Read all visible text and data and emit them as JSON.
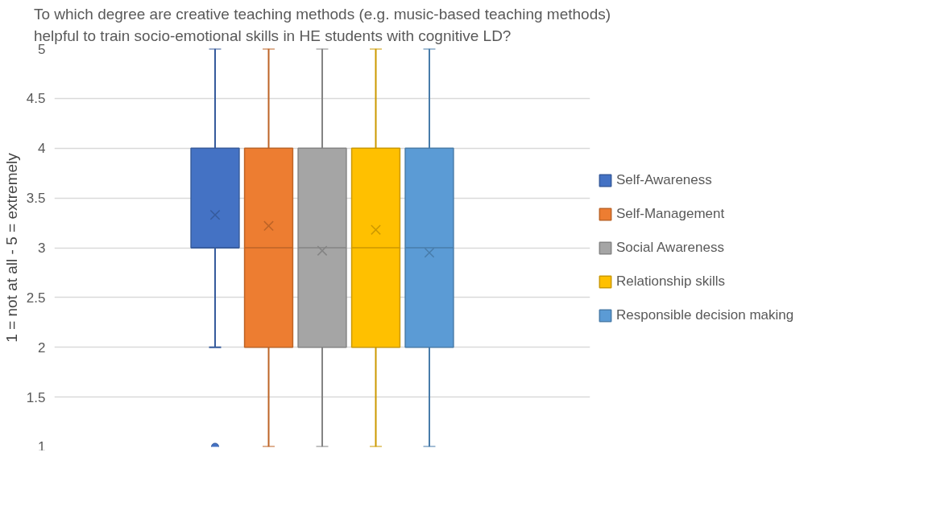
{
  "chart_data": {
    "type": "box",
    "title": "To which degree are creative teaching methods (e.g. music-based teaching methods)\nhelpful to train socio-emotional skills in HE students with cognitive LD?",
    "ylabel": "1 = not at all - 5 = extremely",
    "categories": [
      null
    ],
    "series": [
      {
        "name": "Self-Awareness",
        "color": "#4472c4",
        "boxes": [
          {
            "low": 2,
            "q1": 3,
            "median": 3,
            "q3": 4,
            "high": 5,
            "mean": 3.33,
            "outliers": [
              1
            ]
          }
        ]
      },
      {
        "name": "Self-Management",
        "color": "#ed7d31",
        "boxes": [
          {
            "low": 1,
            "q1": 2,
            "median": 3,
            "q3": 4,
            "high": 5,
            "mean": 3.22
          }
        ]
      },
      {
        "name": "Social Awareness",
        "color": "#a5a5a5",
        "boxes": [
          {
            "low": 1,
            "q1": 2,
            "median": 3,
            "q3": 4,
            "high": 5,
            "mean": 2.97
          }
        ]
      },
      {
        "name": "Relationship skills",
        "color": "#ffc000",
        "boxes": [
          {
            "low": 1,
            "q1": 2,
            "median": 3,
            "q3": 4,
            "high": 5,
            "mean": 3.18
          }
        ]
      },
      {
        "name": "Responsible decision making",
        "color": "#5b9bd5",
        "boxes": [
          {
            "low": 1,
            "q1": 2,
            "median": 3,
            "q3": 4,
            "high": 5,
            "mean": 2.95
          }
        ]
      }
    ],
    "ylim": [
      1,
      5
    ],
    "yticks": [
      1,
      1.5,
      2,
      2.5,
      3,
      3.5,
      4,
      4.5,
      5
    ],
    "grid": "y",
    "legend": "right",
    "tick_labels": "y"
  }
}
